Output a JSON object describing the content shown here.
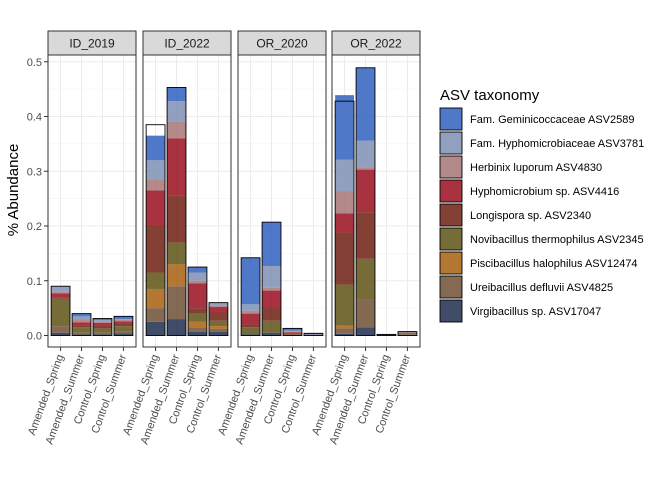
{
  "chart_data": {
    "type": "bar",
    "stacked": true,
    "ylabel": "% Abundance",
    "ylim": [
      0,
      0.52
    ],
    "yticks": [
      "0.0",
      "0.1",
      "0.2",
      "0.3",
      "0.4",
      "0.5"
    ],
    "grid": true,
    "legend_position": "right",
    "legend_title": "ASV taxonomy",
    "categories": [
      "Amended_Spring",
      "Amended_Summer",
      "Control_Spring",
      "Control_Summer"
    ],
    "series": [
      {
        "name": "Fam. Geminicoccaceae ASV2589",
        "color": "#3060C0"
      },
      {
        "name": "Fam. Hyphomicrobiaceae ASV3781",
        "color": "#7F8FB5"
      },
      {
        "name": "Herbinix luporum ASV4830",
        "color": "#A67474"
      },
      {
        "name": "Hyphomicrobium sp. ASV4416",
        "color": "#990E1E"
      },
      {
        "name": "Longispora sp. ASV2340",
        "color": "#701F12"
      },
      {
        "name": "Novibacillus thermophilus ASV2345",
        "color": "#5E5215"
      },
      {
        "name": "Piscibacillus halophilus ASV12474",
        "color": "#A8600E"
      },
      {
        "name": "Ureibacillus defluvii ASV4825",
        "color": "#6E5034"
      },
      {
        "name": "Virgibacillus sp. ASV17047",
        "color": "#1E2D4D"
      }
    ],
    "panels": [
      {
        "label": "ID_2019",
        "bars": [
          {
            "category": "Amended_Spring",
            "values": [
              0,
              0.01,
              0.003,
              0.007,
              0.003,
              0.05,
              0,
              0.012,
              0.005
            ],
            "total": 0.09
          },
          {
            "category": "Amended_Summer",
            "values": [
              0.005,
              0.005,
              0.006,
              0.005,
              0.004,
              0.01,
              0,
              0.003,
              0.002
            ],
            "total": 0.04
          },
          {
            "category": "Control_Spring",
            "values": [
              0.003,
              0.002,
              0.003,
              0.004,
              0.006,
              0.008,
              0,
              0.003,
              0.002
            ],
            "total": 0.031
          },
          {
            "category": "Control_Summer",
            "values": [
              0.005,
              0.001,
              0.003,
              0.004,
              0.005,
              0.01,
              0,
              0.003,
              0.004
            ],
            "total": 0.035
          }
        ]
      },
      {
        "label": "ID_2022",
        "bars": [
          {
            "category": "Amended_Spring",
            "values": [
              0.045,
              0.035,
              0.02,
              0.065,
              0.085,
              0.03,
              0.035,
              0.025,
              0.025
            ],
            "total": 0.385
          },
          {
            "category": "Amended_Summer",
            "values": [
              0.025,
              0.038,
              0.03,
              0.105,
              0.085,
              0.04,
              0.04,
              0.06,
              0.03
            ],
            "total": 0.453
          },
          {
            "category": "Control_Spring",
            "values": [
              0.01,
              0.015,
              0.005,
              0.045,
              0.01,
              0.015,
              0.01,
              0.008,
              0.007
            ],
            "total": 0.125
          },
          {
            "category": "Control_Summer",
            "values": [
              0.001,
              0.005,
              0.002,
              0.01,
              0.015,
              0.01,
              0.005,
              0.005,
              0.007
            ],
            "total": 0.06
          }
        ]
      },
      {
        "label": "OR_2020",
        "bars": [
          {
            "category": "Amended_Spring",
            "values": [
              0.085,
              0.012,
              0.005,
              0.02,
              0.005,
              0.013,
              0,
              0,
              0.002
            ],
            "total": 0.142
          },
          {
            "category": "Amended_Summer",
            "values": [
              0.08,
              0.04,
              0.005,
              0.03,
              0.025,
              0.022,
              0,
              0,
              0.005
            ],
            "total": 0.207
          },
          {
            "category": "Control_Spring",
            "values": [
              0.004,
              0.002,
              0.001,
              0.002,
              0.002,
              0.001,
              0,
              0,
              0.001
            ],
            "total": 0.013
          },
          {
            "category": "Control_Summer",
            "values": [
              0.002,
              0,
              0.001,
              0.001,
              0,
              0,
              0,
              0,
              0
            ],
            "total": 0.004
          }
        ]
      },
      {
        "label": "OR_2022",
        "bars": [
          {
            "category": "Amended_Spring",
            "values": [
              0.118,
              0.058,
              0.04,
              0.035,
              0.095,
              0.075,
              0.005,
              0.01,
              0.003
            ],
            "total": 0.428
          },
          {
            "category": "Amended_Summer",
            "values": [
              0.133,
              0.05,
              0.003,
              0.078,
              0.085,
              0.075,
              0,
              0.05,
              0.015
            ],
            "total": 0.489
          },
          {
            "category": "Control_Spring",
            "values": [
              0.002,
              0,
              0,
              0,
              0,
              0,
              0,
              0,
              0
            ],
            "total": 0.002
          },
          {
            "category": "Control_Summer",
            "values": [
              0.002,
              0,
              0.001,
              0.001,
              0.001,
              0.001,
              0,
              0.001,
              0.001
            ],
            "total": 0.007
          }
        ]
      }
    ]
  }
}
